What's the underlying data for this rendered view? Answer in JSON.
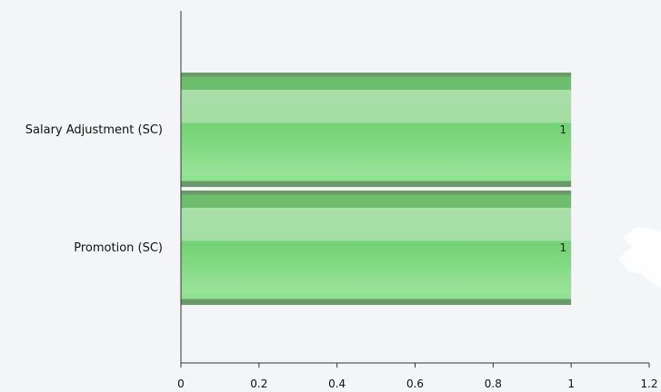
{
  "chart_data": {
    "type": "bar",
    "orientation": "horizontal",
    "categories": [
      "Salary Adjustment (SC)",
      "Promotion (SC)"
    ],
    "values": [
      1,
      1
    ],
    "data_labels": [
      "1",
      "1"
    ],
    "xlim": [
      0,
      1.2
    ],
    "x_ticks": [
      0,
      0.2,
      0.4,
      0.6,
      0.8,
      1,
      1.2
    ],
    "x_tick_labels": [
      "0",
      "0.2",
      "0.4",
      "0.6",
      "0.8",
      "1",
      "1.2"
    ],
    "grid": false,
    "legend": "none",
    "colors": {
      "bar_base": "#7fd77f",
      "bar_dark": "#6cbd6c",
      "bar_light": "#a8e3a8",
      "bar_edge": "#6a9a6a",
      "axis": "#333333",
      "background": "#f4f5f7"
    }
  }
}
